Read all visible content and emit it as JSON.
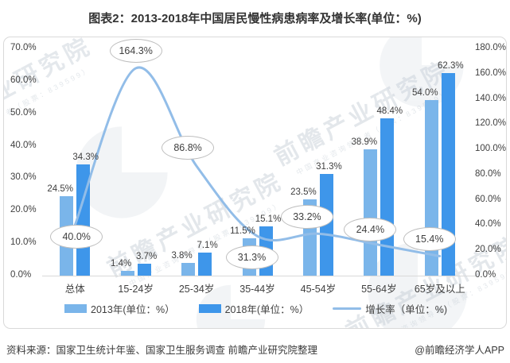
{
  "title": "图表2：2013-2018年中国居民慢性病患病率及增长率(单位：%)",
  "footer": {
    "source": "资料来源：国家卫生统计年鉴、国家卫生服务调查 前瞻产业研究院整理",
    "credit": "@前瞻经济学人APP"
  },
  "watermark": {
    "main": "前瞻产业研究院",
    "sub": "中国产业咨询领导者（股票：839599）"
  },
  "colors": {
    "bar_2013": "#7ab5ea",
    "bar_2018": "#3e96ea",
    "growth_line": "#92bde8",
    "axis_text": "#404040",
    "box_border": "#d9d9d9",
    "ellipse_border": "#bfbfbf"
  },
  "chart_data": {
    "type": "bar+line",
    "title": "图表2：2013-2018年中国居民慢性病患病率及增长率(单位：%)",
    "categories": [
      "总体",
      "15-24岁",
      "25-34岁",
      "35-44岁",
      "45-54岁",
      "55-64岁",
      "65岁及以上"
    ],
    "series": [
      {
        "name": "2013年(单位：%）",
        "type": "bar",
        "axis": "left",
        "values": [
          24.5,
          1.4,
          3.8,
          11.5,
          23.5,
          38.9,
          54.0
        ],
        "labels": [
          "24.5%",
          "1.4%",
          "3.8%",
          "11.5%",
          "23.5%",
          "38.9%",
          "54.0%"
        ]
      },
      {
        "name": "2018年(单位：%）",
        "type": "bar",
        "axis": "left",
        "values": [
          34.3,
          3.7,
          7.1,
          15.1,
          31.3,
          48.4,
          62.3
        ],
        "labels": [
          "34.3%",
          "3.7%",
          "7.1%",
          "15.1%",
          "31.3%",
          "48.4%",
          "62.3%"
        ]
      },
      {
        "name": "增长率（单位：%)",
        "type": "line",
        "axis": "right",
        "values": [
          40.0,
          164.3,
          86.8,
          31.3,
          33.2,
          24.4,
          15.4
        ],
        "labels": [
          "40.0%",
          "164.3%",
          "86.8%",
          "31.3%",
          "33.2%",
          "24.4%",
          "15.4%"
        ]
      }
    ],
    "left_axis": {
      "min": 0,
      "max": 70,
      "ticks": [
        "70.0%",
        "60.0%",
        "50.0%",
        "40.0%",
        "30.0%",
        "20.0%",
        "10.0%",
        "0.0%"
      ]
    },
    "right_axis": {
      "min": 0,
      "max": 180,
      "ticks": [
        "180.0%",
        "160.0%",
        "140.0%",
        "120.0%",
        "100.0%",
        "80.0%",
        "60.0%",
        "40.0%",
        "20.0%",
        "0.0%"
      ]
    },
    "grid": false,
    "legend_position": "bottom"
  }
}
